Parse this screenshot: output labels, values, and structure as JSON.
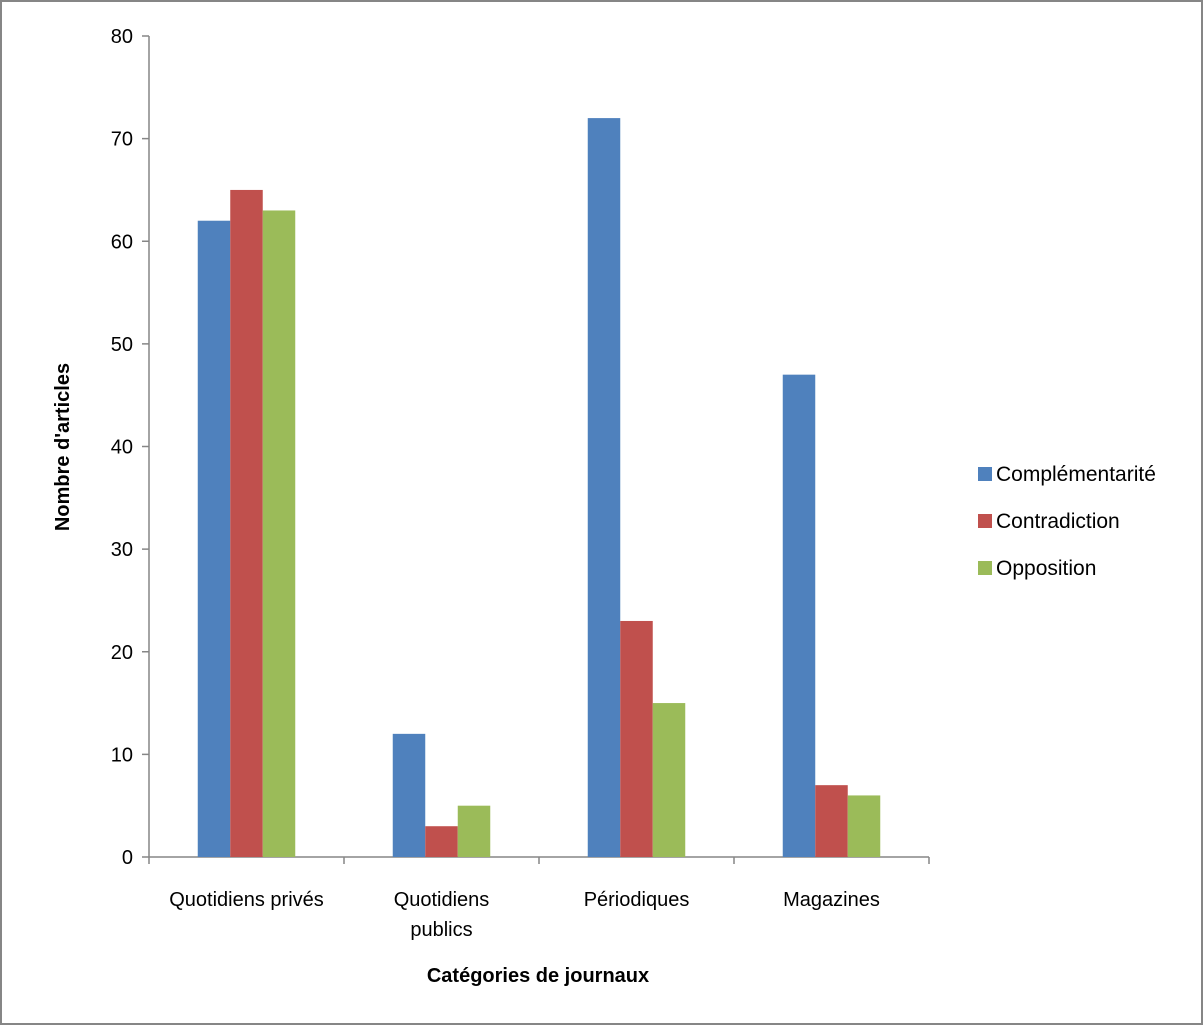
{
  "chart_data": {
    "type": "bar",
    "xlabel": "Catégories de journaux",
    "ylabel": "Nombre d'articles",
    "ylim": [
      0,
      80
    ],
    "yticks": [
      0,
      10,
      20,
      30,
      40,
      50,
      60,
      70,
      80
    ],
    "categories": [
      [
        "Quotidiens privés"
      ],
      [
        "Quotidiens",
        "publics"
      ],
      [
        "Périodiques"
      ],
      [
        "Magazines"
      ]
    ],
    "series": [
      {
        "name": "Complémentarité",
        "color": "#4f81bd",
        "values": [
          62,
          12,
          72,
          47
        ]
      },
      {
        "name": "Contradiction",
        "color": "#c0504d",
        "values": [
          65,
          3,
          23,
          7
        ]
      },
      {
        "name": "Opposition",
        "color": "#9bbb59",
        "values": [
          63,
          5,
          15,
          6
        ]
      }
    ],
    "grid": false,
    "legend_position": "right"
  }
}
